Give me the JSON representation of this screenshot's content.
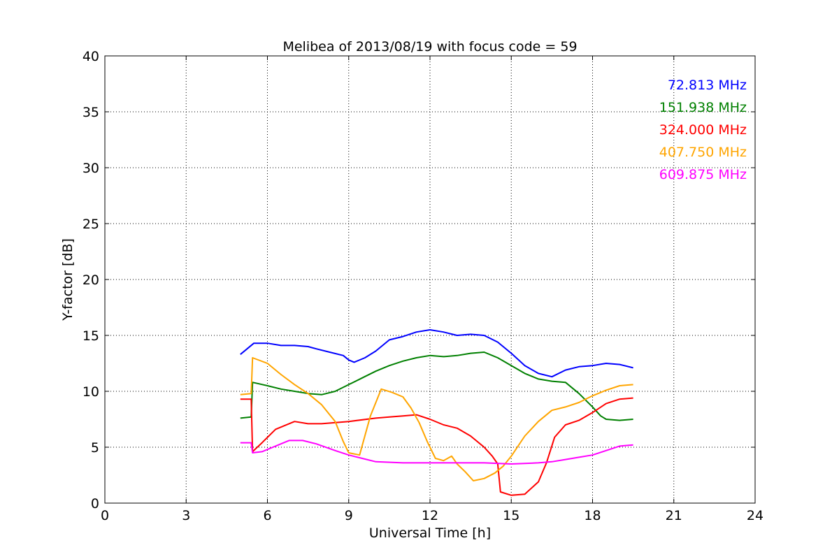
{
  "chart_data": {
    "type": "line",
    "title": "Melibea of 2013/08/19 with focus code = 59",
    "xlabel": "Universal Time [h]",
    "ylabel": "Y-factor [dB]",
    "xlim": [
      0,
      24
    ],
    "ylim": [
      0,
      40
    ],
    "xticks": [
      0,
      3,
      6,
      9,
      12,
      15,
      18,
      21,
      24
    ],
    "yticks": [
      0,
      5,
      10,
      15,
      20,
      25,
      30,
      35,
      40
    ],
    "grid": true,
    "legend_position": "top-right",
    "series": [
      {
        "name": "72.813 MHz",
        "color": "#0000ff",
        "x": [
          5.0,
          5.2,
          5.5,
          6.0,
          6.5,
          7.0,
          7.5,
          7.8,
          8.3,
          8.8,
          9.0,
          9.2,
          9.6,
          10.0,
          10.5,
          11.0,
          11.5,
          12.0,
          12.5,
          13.0,
          13.5,
          14.0,
          14.5,
          15.0,
          15.5,
          16.0,
          16.5,
          17.0,
          17.5,
          18.0,
          18.5,
          19.0,
          19.5
        ],
        "y": [
          13.3,
          13.7,
          14.3,
          14.3,
          14.1,
          14.1,
          14.0,
          13.8,
          13.5,
          13.2,
          12.8,
          12.6,
          13.0,
          13.6,
          14.6,
          14.9,
          15.3,
          15.5,
          15.3,
          15.0,
          15.1,
          15.0,
          14.4,
          13.4,
          12.3,
          11.6,
          11.3,
          11.9,
          12.2,
          12.3,
          12.5,
          12.4,
          12.1
        ]
      },
      {
        "name": "151.938 MHz",
        "color": "#008000",
        "x": [
          5.0,
          5.4,
          5.45,
          6.0,
          6.5,
          7.0,
          7.5,
          8.0,
          8.5,
          9.0,
          9.5,
          10.0,
          10.5,
          11.0,
          11.5,
          12.0,
          12.5,
          13.0,
          13.5,
          14.0,
          14.5,
          15.0,
          15.5,
          16.0,
          16.5,
          17.0,
          17.5,
          18.0,
          18.3,
          18.5,
          19.0,
          19.5
        ],
        "y": [
          7.6,
          7.7,
          10.8,
          10.5,
          10.2,
          10.0,
          9.8,
          9.7,
          10.0,
          10.6,
          11.2,
          11.8,
          12.3,
          12.7,
          13.0,
          13.2,
          13.1,
          13.2,
          13.4,
          13.5,
          13.0,
          12.3,
          11.6,
          11.1,
          10.9,
          10.8,
          9.8,
          8.6,
          7.8,
          7.5,
          7.4,
          7.5
        ]
      },
      {
        "name": "324.000 MHz",
        "color": "#ff0000",
        "x": [
          5.0,
          5.4,
          5.45,
          5.8,
          6.3,
          7.0,
          7.5,
          8.0,
          9.0,
          10.0,
          10.5,
          11.0,
          11.5,
          12.0,
          12.5,
          13.0,
          13.5,
          14.0,
          14.3,
          14.5,
          14.6,
          15.0,
          15.5,
          16.0,
          16.3,
          16.6,
          17.0,
          17.5,
          18.0,
          18.5,
          19.0,
          19.5
        ],
        "y": [
          9.3,
          9.3,
          4.6,
          5.4,
          6.6,
          7.3,
          7.1,
          7.1,
          7.3,
          7.6,
          7.7,
          7.8,
          7.9,
          7.5,
          7.0,
          6.7,
          6.0,
          5.0,
          4.2,
          3.5,
          1.0,
          0.7,
          0.8,
          1.9,
          3.6,
          5.9,
          7.0,
          7.4,
          8.1,
          8.9,
          9.3,
          9.4
        ]
      },
      {
        "name": "407.750 MHz",
        "color": "#ffa500",
        "x": [
          5.0,
          5.4,
          5.45,
          6.0,
          6.5,
          7.0,
          7.5,
          8.0,
          8.5,
          8.8,
          9.0,
          9.4,
          9.8,
          10.2,
          10.6,
          11.0,
          11.3,
          11.6,
          11.9,
          12.2,
          12.5,
          12.8,
          13.0,
          13.3,
          13.6,
          14.0,
          14.4,
          14.7,
          15.0,
          15.5,
          16.0,
          16.5,
          17.0,
          17.5,
          18.0,
          18.5,
          19.0,
          19.5
        ],
        "y": [
          9.7,
          9.8,
          13.0,
          12.5,
          11.5,
          10.6,
          9.8,
          8.8,
          7.3,
          5.5,
          4.5,
          4.3,
          7.8,
          10.2,
          9.9,
          9.5,
          8.5,
          7.2,
          5.5,
          4.0,
          3.8,
          4.2,
          3.5,
          2.8,
          2.0,
          2.2,
          2.7,
          3.3,
          4.2,
          6.0,
          7.3,
          8.3,
          8.6,
          9.0,
          9.6,
          10.1,
          10.5,
          10.6
        ]
      },
      {
        "name": "609.875 MHz",
        "color": "#ff00ff",
        "x": [
          5.0,
          5.4,
          5.45,
          5.8,
          6.3,
          6.8,
          7.3,
          7.8,
          8.5,
          9.0,
          9.5,
          10.0,
          11.0,
          12.0,
          13.0,
          14.0,
          15.0,
          16.0,
          16.5,
          17.0,
          17.5,
          18.0,
          18.5,
          19.0,
          19.5
        ],
        "y": [
          5.4,
          5.4,
          4.5,
          4.6,
          5.1,
          5.6,
          5.6,
          5.3,
          4.7,
          4.3,
          4.0,
          3.7,
          3.6,
          3.6,
          3.6,
          3.6,
          3.5,
          3.6,
          3.7,
          3.9,
          4.1,
          4.3,
          4.7,
          5.1,
          5.2
        ]
      }
    ]
  }
}
